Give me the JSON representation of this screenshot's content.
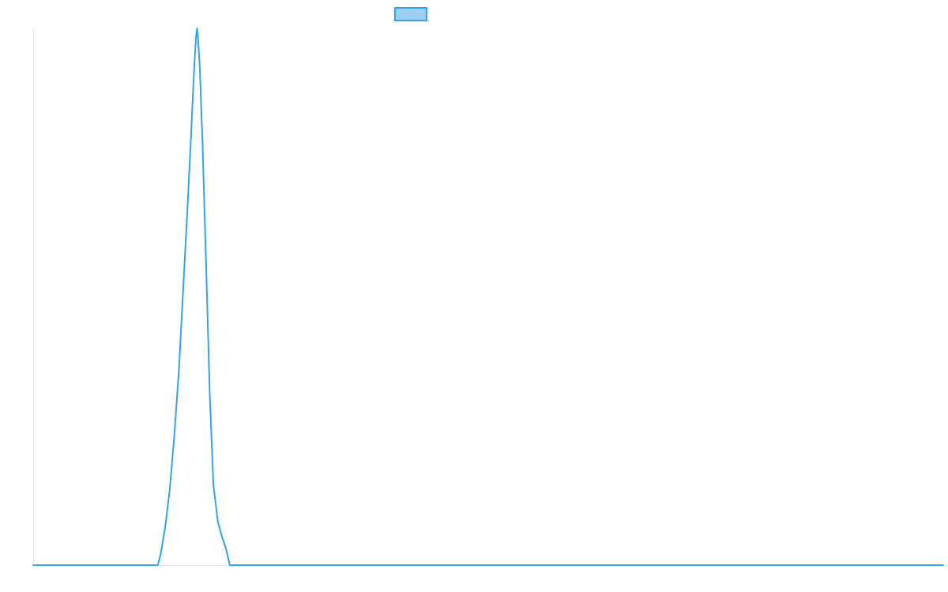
{
  "chart_data": {
    "type": "line",
    "title": "",
    "xlabel": "",
    "ylabel": "",
    "grid": false,
    "legend": {
      "position": "top-center"
    },
    "x_range": [
      0,
      100
    ],
    "y_range": [
      0,
      1
    ],
    "series": [
      {
        "line_color": "#36a2eb",
        "fill_color": "#9ad0f5",
        "points": [
          [
            0,
            0
          ],
          [
            13.7,
            0
          ],
          [
            14.0,
            0.02
          ],
          [
            14.5,
            0.07
          ],
          [
            15.0,
            0.14
          ],
          [
            15.5,
            0.24
          ],
          [
            16.0,
            0.36
          ],
          [
            16.5,
            0.52
          ],
          [
            17.0,
            0.68
          ],
          [
            17.4,
            0.82
          ],
          [
            17.7,
            0.93
          ],
          [
            17.9,
            0.985
          ],
          [
            18.0,
            1.0
          ],
          [
            18.1,
            0.985
          ],
          [
            18.3,
            0.93
          ],
          [
            18.6,
            0.79
          ],
          [
            19.0,
            0.56
          ],
          [
            19.4,
            0.32
          ],
          [
            19.8,
            0.15
          ],
          [
            20.3,
            0.08
          ],
          [
            20.8,
            0.05
          ],
          [
            21.2,
            0.03
          ],
          [
            21.6,
            0
          ],
          [
            100,
            0
          ]
        ]
      }
    ]
  }
}
